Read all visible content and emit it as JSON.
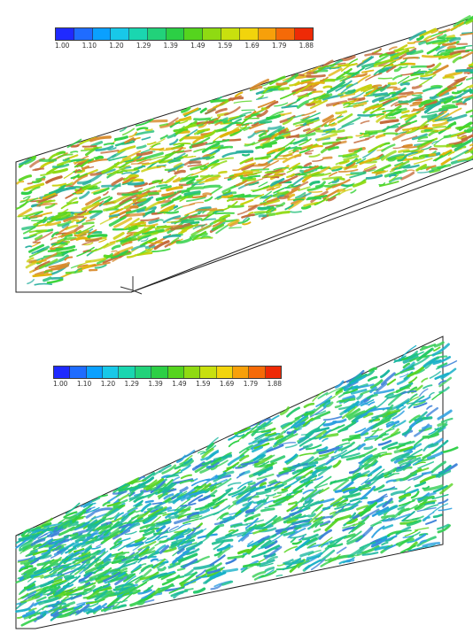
{
  "colors": {
    "colormap": [
      "#1f2aff",
      "#1f6cff",
      "#0aa0ff",
      "#18c8e8",
      "#1ad6b0",
      "#22d27a",
      "#2ccf45",
      "#55d41e",
      "#8fda12",
      "#c8e00e",
      "#f2d40c",
      "#f7a00a",
      "#f56a08",
      "#ee2a06"
    ],
    "domain_outline": "#222222",
    "background": "#ffffff"
  },
  "panels": [
    {
      "id": "top",
      "colorbar_ticks": [
        "1.00",
        "1.10",
        "1.20",
        "1.29",
        "1.39",
        "1.49",
        "1.59",
        "1.69",
        "1.79",
        "1.88"
      ],
      "dominant_colors": [
        "green",
        "yellow-green",
        "orange"
      ]
    },
    {
      "id": "bottom",
      "colorbar_ticks": [
        "1.00",
        "1.10",
        "1.20",
        "1.29",
        "1.39",
        "1.49",
        "1.59",
        "1.69",
        "1.79",
        "1.88"
      ],
      "dominant_colors": [
        "green",
        "cyan",
        "blue"
      ]
    }
  ]
}
